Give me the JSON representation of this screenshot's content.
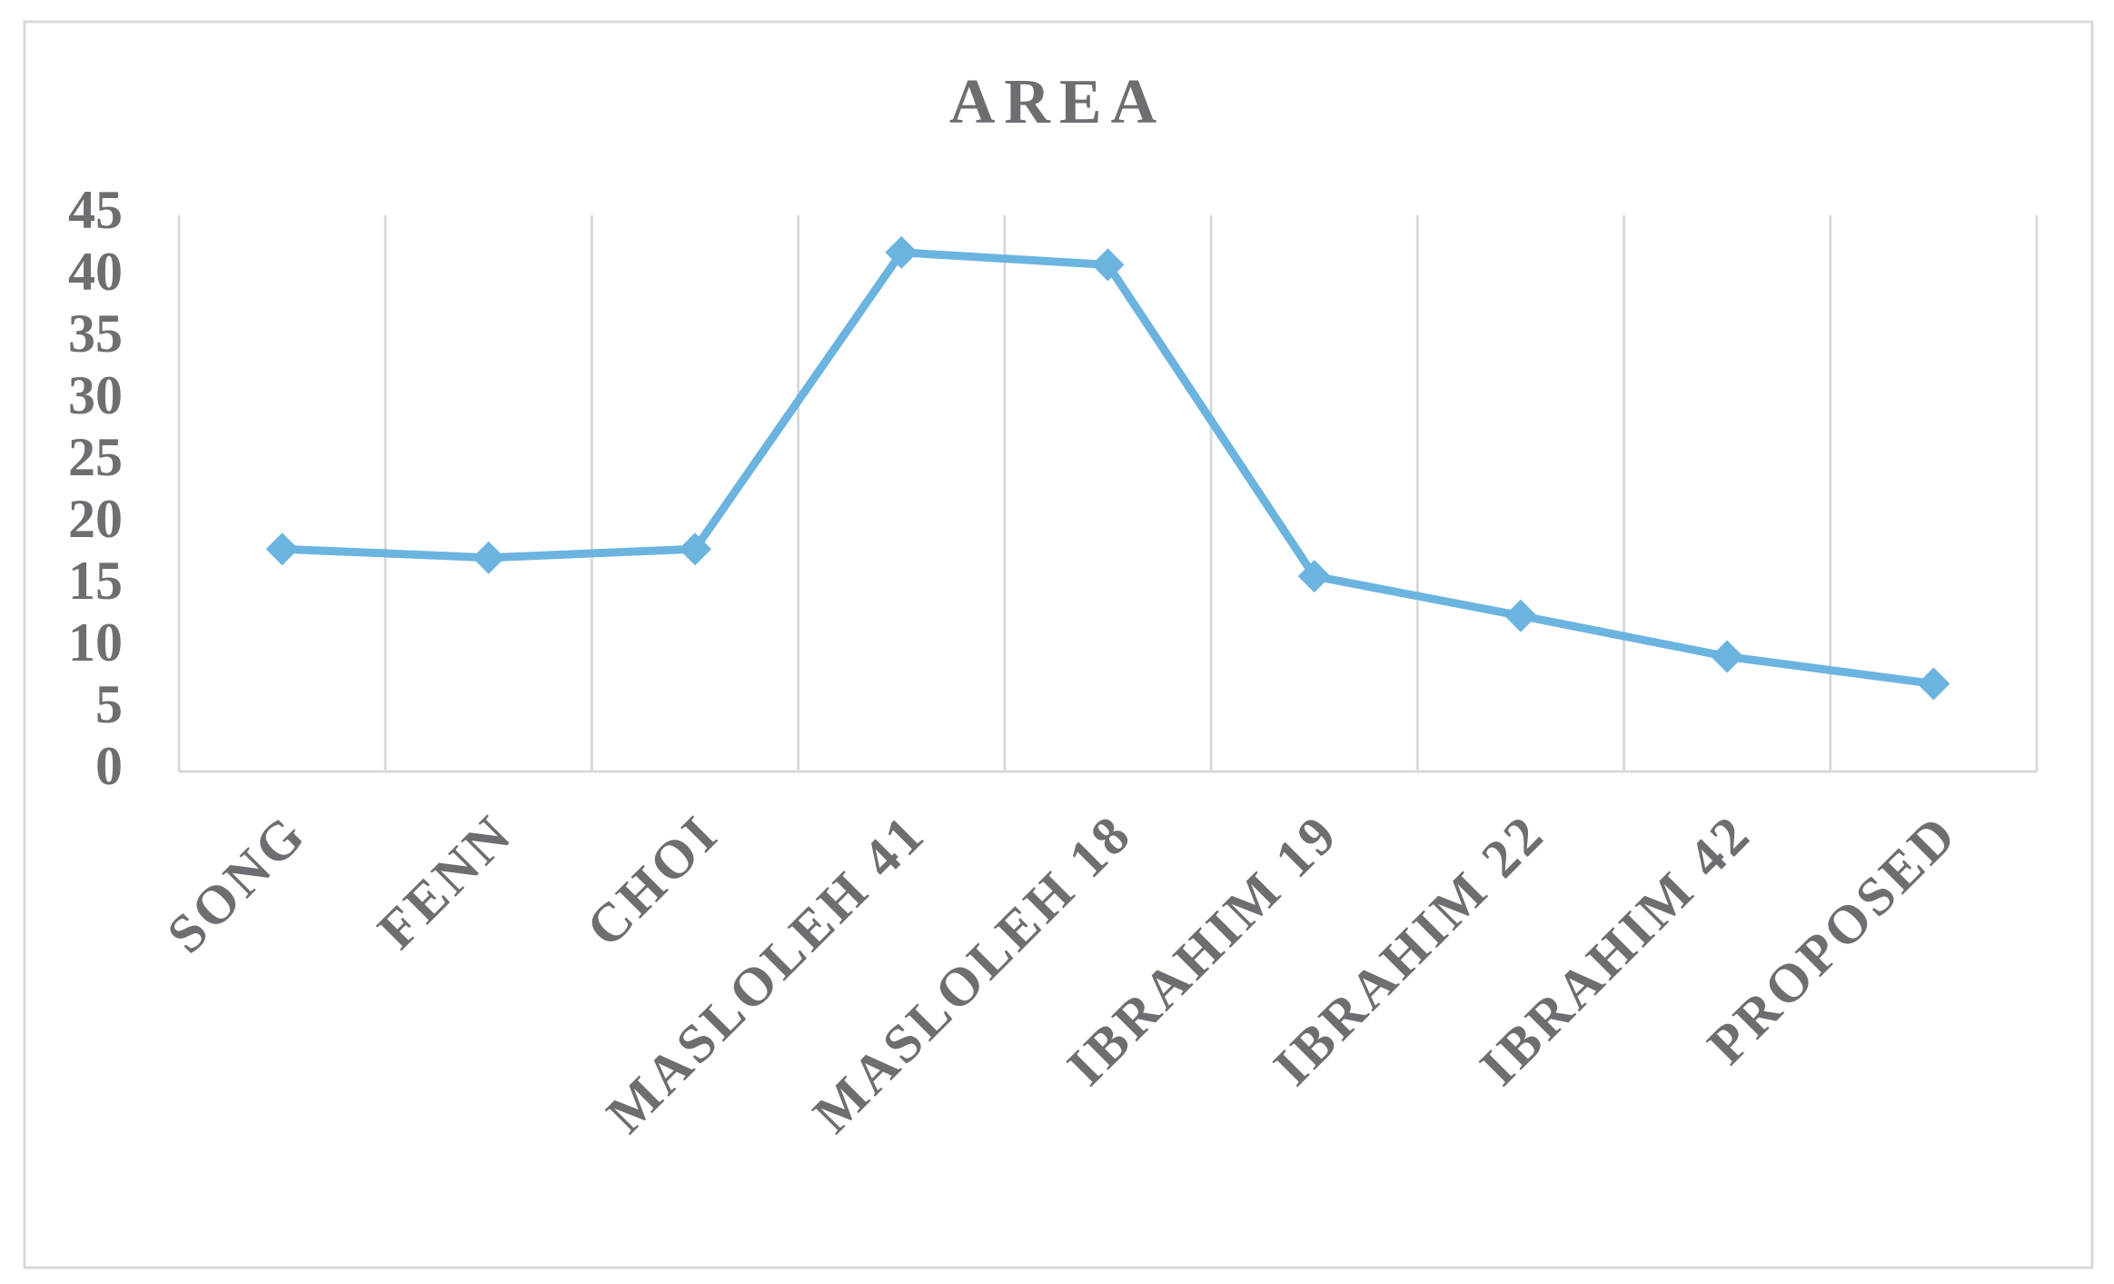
{
  "chart_data": {
    "type": "line",
    "title": "AREA",
    "categories": [
      "SONG",
      "FENN",
      "CHOI",
      "MASLOLEH 41",
      "MASLOLEH 18",
      "IBRAHIM 19",
      "IBRAHIM 22",
      "IBRAHIM 42",
      "PROPOSED"
    ],
    "series": [
      {
        "name": "AREA",
        "color": "#6cb4e0",
        "values": [
          18,
          17.3,
          18,
          42,
          41,
          15.8,
          12.6,
          9.3,
          7.1
        ]
      }
    ],
    "ylim": [
      0,
      45
    ],
    "yticks": [
      0,
      5,
      10,
      15,
      20,
      25,
      30,
      35,
      40,
      45
    ],
    "grid": "vertical"
  }
}
